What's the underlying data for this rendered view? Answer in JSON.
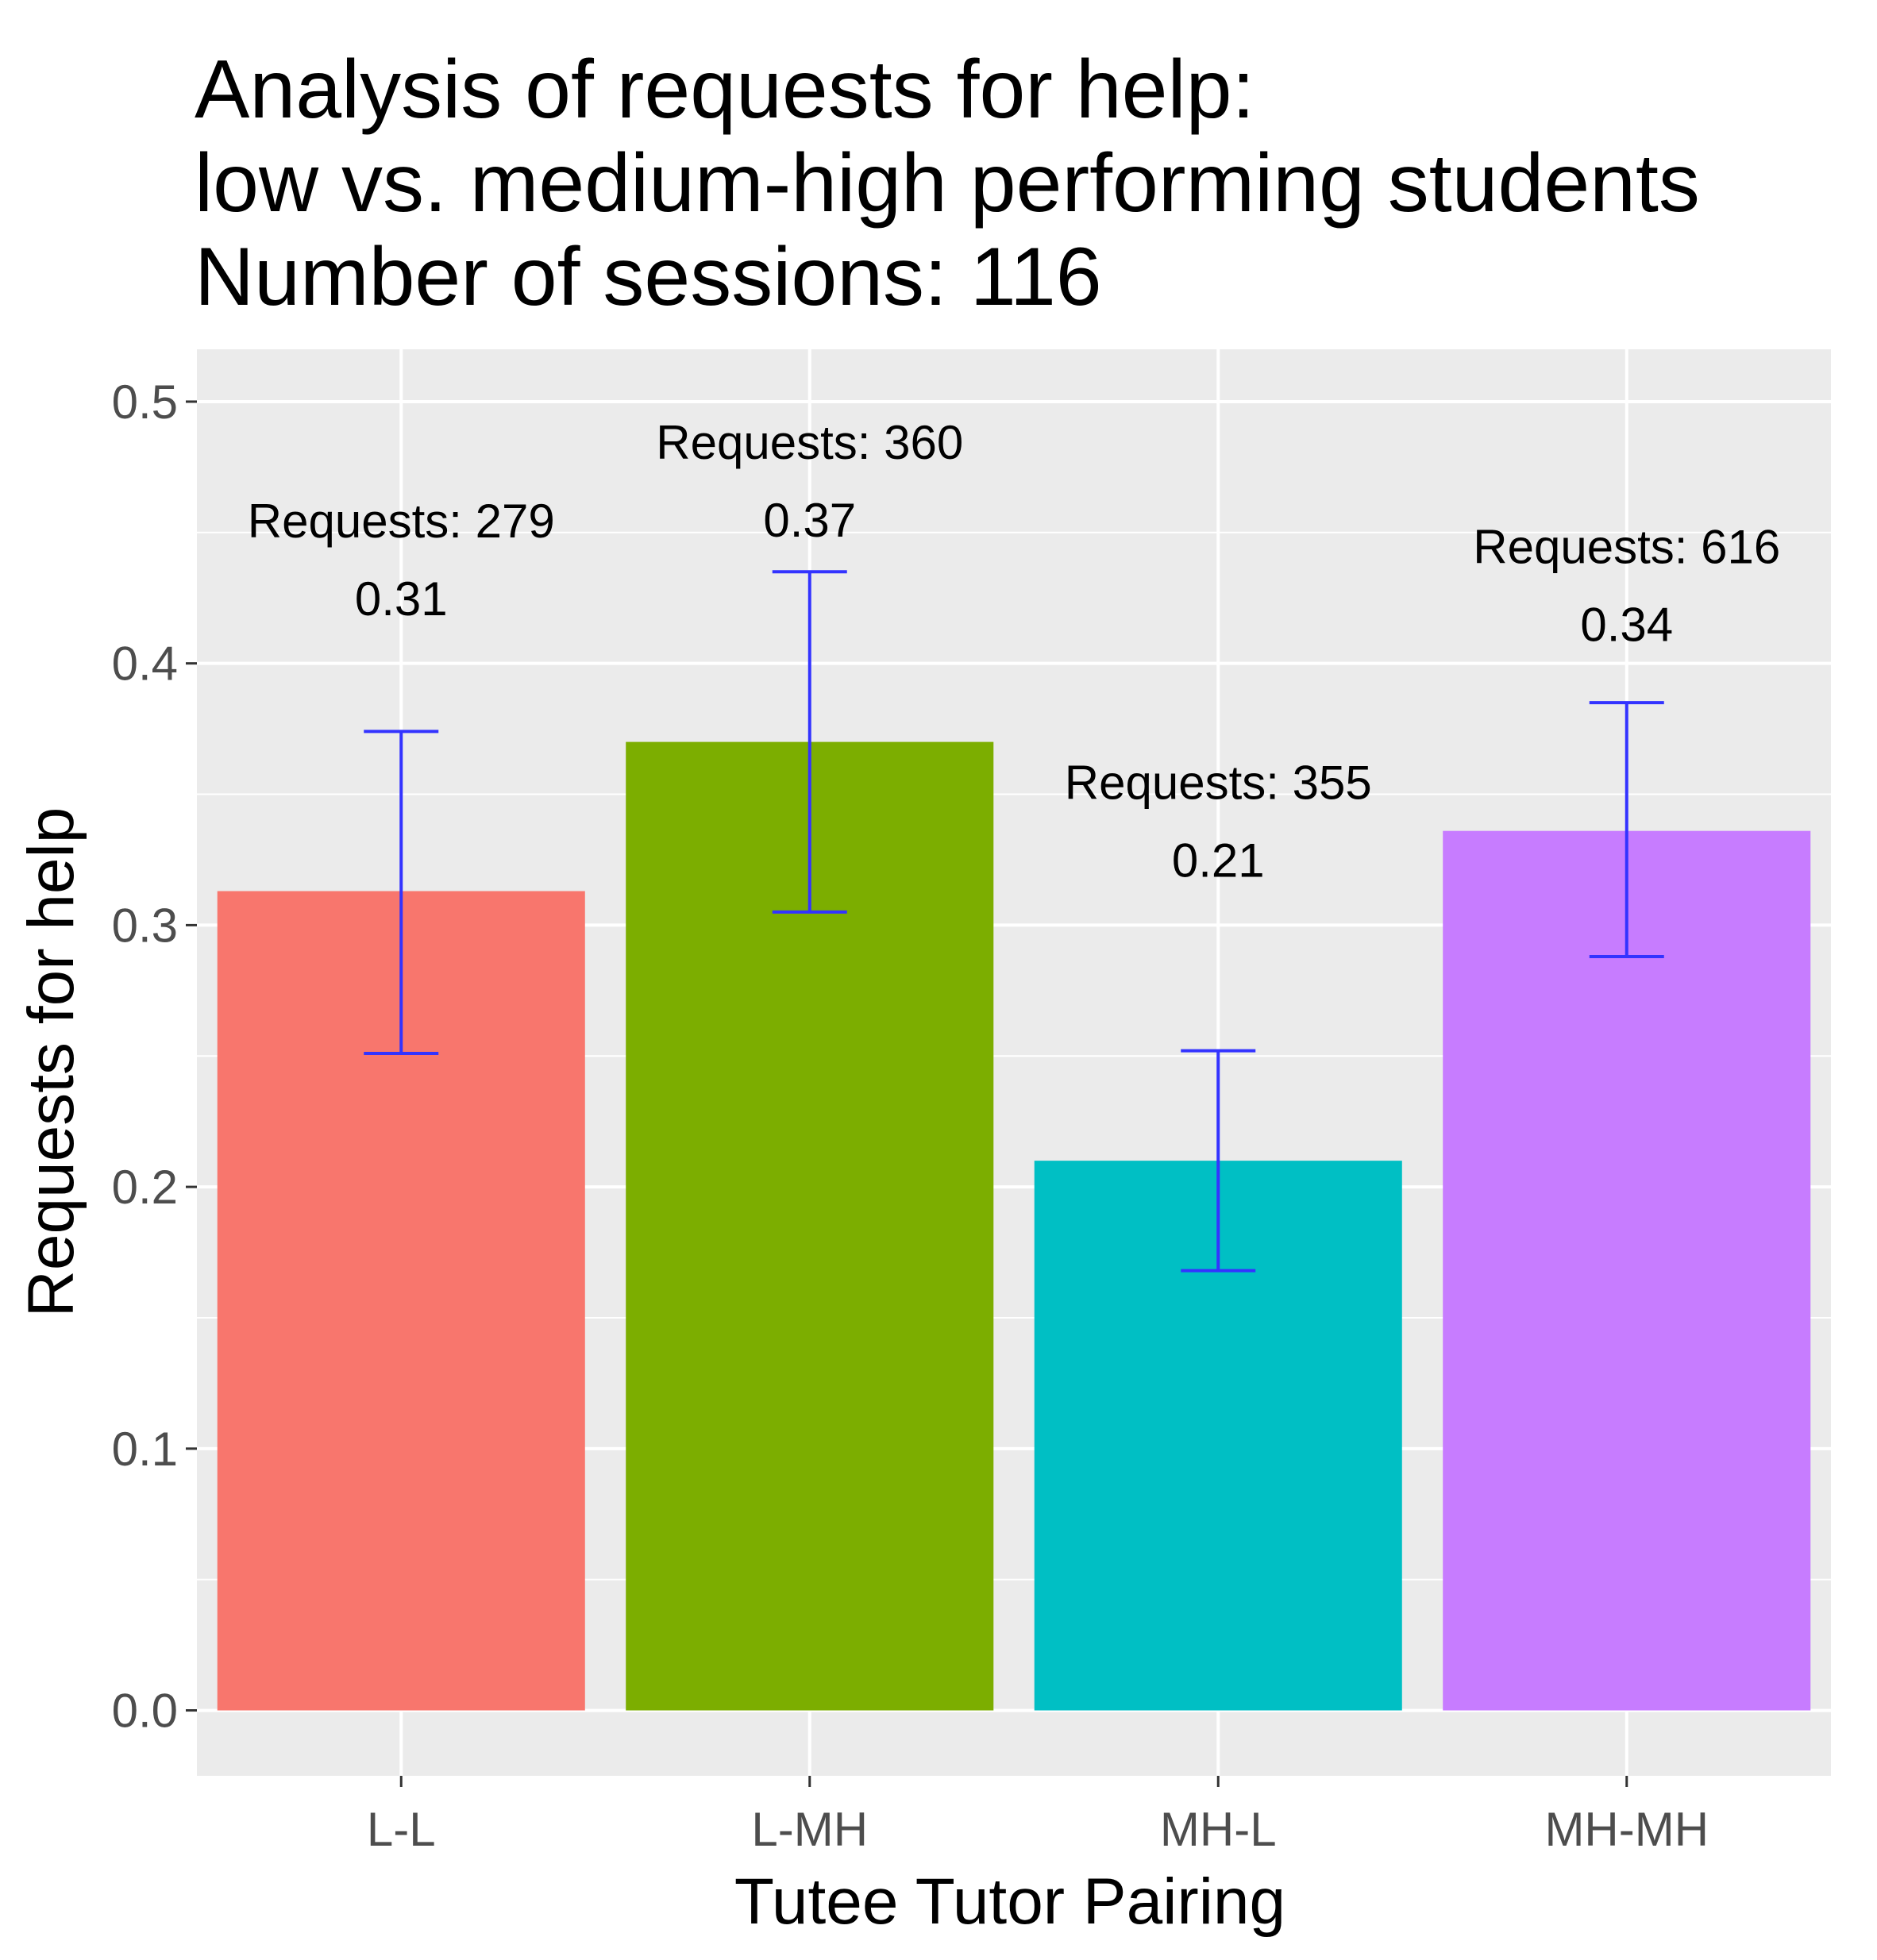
{
  "chart_data": {
    "type": "bar",
    "title_lines": [
      "Analysis of requests for help:",
      "low vs. medium-high performing students",
      "Number of sessions: 116"
    ],
    "xlabel": "Tutee Tutor Pairing",
    "ylabel": "Requests for help",
    "categories": [
      "L-L",
      "L-MH",
      "MH-L",
      "MH-MH"
    ],
    "values": [
      0.313,
      0.37,
      0.21,
      0.336
    ],
    "error_lower": [
      0.251,
      0.305,
      0.168,
      0.288
    ],
    "error_upper": [
      0.374,
      0.435,
      0.252,
      0.385
    ],
    "value_labels": [
      "0.31",
      "0.37",
      "0.21",
      "0.34"
    ],
    "request_labels": [
      "Requests: 279",
      "Requests: 360",
      "Requests: 355",
      "Requests: 616"
    ],
    "label_y": [
      0.43,
      0.46,
      0.33,
      0.42
    ],
    "ylim": [
      -0.025,
      0.52
    ],
    "yticks": [
      0.0,
      0.1,
      0.2,
      0.3,
      0.4,
      0.5
    ],
    "ytick_labels": [
      "0.0",
      "0.1",
      "0.2",
      "0.3",
      "0.4",
      "0.5"
    ],
    "grid": true,
    "colors": {
      "bars": [
        "#F8766D",
        "#7CAE00",
        "#00BFC4",
        "#C77CFF"
      ],
      "error_bar": "#3333FF",
      "panel": "#EBEBEB",
      "grid": "#FFFFFF",
      "tick": "#333333"
    }
  }
}
